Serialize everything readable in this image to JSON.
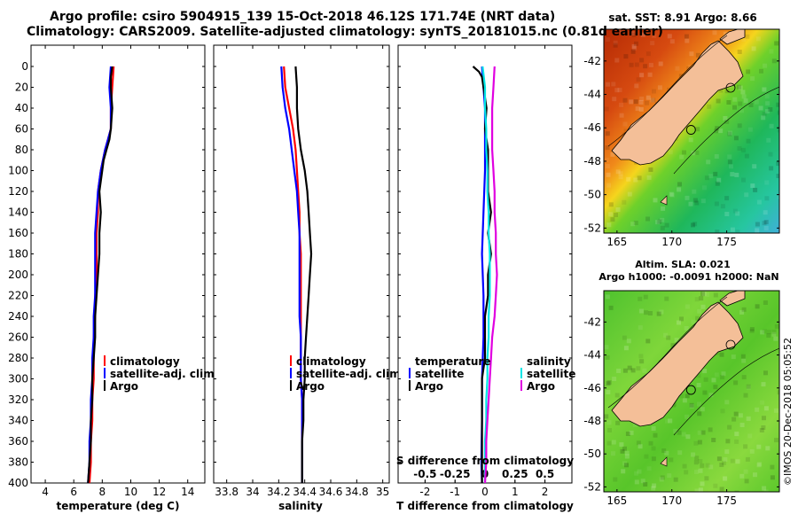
{
  "header": {
    "title_line1": "Argo profile: csiro 5904915_139 15-Oct-2018 46.12S 171.74E (NRT data)",
    "title_line2": "Climatology: CARS2009. Satellite-adjusted climatology: synTS_20181015.nc (0.81d earlier)"
  },
  "colors": {
    "climatology": "#ff0000",
    "satellite": "#0000ff",
    "argo": "#000000",
    "satellite_diff_s": "#00e5e5",
    "argo_diff_s": "#e000e0",
    "land": "#f4bf98"
  },
  "chart_data": [
    {
      "id": "temperature",
      "type": "line",
      "xlabel": "temperature (deg C)",
      "ylabel": "",
      "xlim": [
        3,
        15.2
      ],
      "ylim": [
        400,
        0
      ],
      "xticks": [
        "4",
        "6",
        "8",
        "10",
        "12",
        "14"
      ],
      "xtick_values": [
        4,
        6,
        8,
        10,
        12,
        14
      ],
      "yticks": [
        "0",
        "20",
        "40",
        "60",
        "80",
        "100",
        "120",
        "140",
        "160",
        "180",
        "200",
        "220",
        "240",
        "260",
        "280",
        "300",
        "320",
        "340",
        "360",
        "380",
        "400"
      ],
      "legend": [
        "climatology",
        "satellite-adj. clim.",
        "Argo"
      ],
      "legend_position": "lower-right",
      "series": [
        {
          "name": "climatology",
          "color": "#ff0000",
          "depth": [
            0,
            20,
            40,
            60,
            70,
            80,
            100,
            120,
            140,
            160,
            180,
            200,
            220,
            240,
            260,
            280,
            300,
            320,
            340,
            360,
            380,
            400
          ],
          "values": [
            8.8,
            8.7,
            8.6,
            8.6,
            8.4,
            8.2,
            7.9,
            7.7,
            7.7,
            7.6,
            7.6,
            7.6,
            7.5,
            7.5,
            7.4,
            7.4,
            7.4,
            7.3,
            7.3,
            7.2,
            7.2,
            7.1
          ]
        },
        {
          "name": "satellite-adj. clim.",
          "color": "#0000ff",
          "depth": [
            0,
            20,
            40,
            60,
            70,
            80,
            100,
            120,
            140,
            160,
            180,
            200,
            220,
            240,
            260,
            280,
            300,
            320,
            340,
            360,
            380,
            400
          ],
          "values": [
            8.6,
            8.5,
            8.6,
            8.6,
            8.4,
            8.2,
            7.9,
            7.7,
            7.6,
            7.5,
            7.5,
            7.5,
            7.5,
            7.4,
            7.4,
            7.3,
            7.3,
            7.2,
            7.2,
            7.1,
            7.1,
            7.0
          ]
        },
        {
          "name": "Argo",
          "color": "#000000",
          "depth": [
            0,
            10,
            20,
            40,
            60,
            70,
            80,
            90,
            100,
            120,
            140,
            160,
            180,
            200,
            220,
            240,
            260,
            280,
            300,
            320,
            340,
            360,
            380,
            400
          ],
          "values": [
            8.7,
            8.6,
            8.6,
            8.7,
            8.6,
            8.5,
            8.3,
            8.1,
            8.0,
            7.8,
            7.9,
            7.8,
            7.8,
            7.7,
            7.6,
            7.5,
            7.5,
            7.4,
            7.3,
            7.3,
            7.2,
            7.2,
            7.1,
            7.0
          ]
        }
      ]
    },
    {
      "id": "salinity",
      "type": "line",
      "xlabel": "salinity",
      "ylabel": "",
      "xlim": [
        33.7,
        35.05
      ],
      "ylim": [
        400,
        0
      ],
      "xticks": [
        "33.8",
        "34",
        "34.2",
        "34.4",
        "34.6",
        "34.8",
        "35"
      ],
      "xtick_values": [
        33.8,
        34,
        34.2,
        34.4,
        34.6,
        34.8,
        35
      ],
      "legend": [
        "climatology",
        "satellite-adj. clim.",
        "Argo"
      ],
      "legend_position": "lower-right",
      "series": [
        {
          "name": "climatology",
          "color": "#ff0000",
          "depth": [
            0,
            20,
            40,
            60,
            80,
            100,
            120,
            140,
            160,
            180,
            200,
            220,
            240,
            260,
            280,
            300,
            320,
            340,
            360,
            380,
            400
          ],
          "values": [
            34.24,
            34.25,
            34.28,
            34.31,
            34.33,
            34.34,
            34.35,
            34.36,
            34.36,
            34.37,
            34.37,
            34.37,
            34.37,
            34.37,
            34.37,
            34.37,
            34.38,
            34.38,
            34.38,
            34.38,
            34.38
          ]
        },
        {
          "name": "satellite-adj. clim.",
          "color": "#0000ff",
          "depth": [
            0,
            20,
            40,
            60,
            80,
            100,
            120,
            140,
            160,
            180,
            200,
            220,
            240,
            260,
            280,
            300,
            320,
            340,
            360,
            380,
            400
          ],
          "values": [
            34.22,
            34.23,
            34.25,
            34.28,
            34.3,
            34.32,
            34.34,
            34.35,
            34.36,
            34.36,
            34.36,
            34.36,
            34.36,
            34.37,
            34.37,
            34.37,
            34.38,
            34.38,
            34.38,
            34.38,
            34.38
          ]
        },
        {
          "name": "Argo",
          "color": "#000000",
          "depth": [
            0,
            20,
            40,
            60,
            80,
            100,
            120,
            140,
            160,
            180,
            200,
            220,
            240,
            260,
            280,
            300,
            320,
            340,
            360,
            380,
            400
          ],
          "values": [
            34.33,
            34.34,
            34.34,
            34.35,
            34.37,
            34.4,
            34.42,
            34.43,
            34.44,
            34.45,
            34.44,
            34.43,
            34.42,
            34.41,
            34.4,
            34.4,
            34.39,
            34.39,
            34.38,
            34.38,
            34.38
          ]
        }
      ]
    },
    {
      "id": "difference",
      "type": "line",
      "xlabel": "T difference from climatology",
      "xlabel_top": "S difference from climatology",
      "ylabel": "",
      "xlim": [
        -2.9,
        2.9
      ],
      "ylim": [
        400,
        0
      ],
      "xticks": [
        "-2",
        "-1",
        "0",
        "1",
        "2"
      ],
      "xtick_values": [
        -2,
        -1,
        0,
        1,
        2
      ],
      "s_xticks": [
        "-0.5",
        "-0.25",
        "0",
        "0.25",
        "0.5"
      ],
      "s_xtick_values": [
        -0.5,
        -0.25,
        0,
        0.25,
        0.5
      ],
      "legend_temperature_header": "temperature",
      "legend_salinity_header": "salinity",
      "legend": [
        "satellite",
        "Argo",
        "satellite",
        "Argo"
      ],
      "legend_position": "lower-center",
      "series": [
        {
          "name": "T satellite",
          "color": "#0000ff",
          "depth": [
            0,
            20,
            40,
            60,
            80,
            100,
            140,
            180,
            220,
            260,
            300,
            340,
            380,
            400
          ],
          "values": [
            -0.1,
            -0.05,
            0.0,
            0.0,
            0.0,
            0.0,
            -0.05,
            -0.1,
            -0.05,
            -0.05,
            -0.1,
            -0.1,
            -0.12,
            -0.1
          ]
        },
        {
          "name": "T Argo",
          "color": "#000000",
          "depth": [
            0,
            5,
            10,
            20,
            40,
            60,
            80,
            100,
            120,
            140,
            160,
            180,
            200,
            220,
            240,
            260,
            280,
            300,
            320,
            340,
            360,
            380,
            400
          ],
          "values": [
            -0.4,
            -0.2,
            -0.1,
            -0.05,
            0.05,
            0.0,
            0.1,
            0.1,
            0.1,
            0.2,
            0.1,
            0.2,
            0.1,
            0.1,
            0.0,
            0.0,
            0.0,
            -0.1,
            -0.1,
            -0.1,
            -0.1,
            -0.1,
            -0.1
          ]
        },
        {
          "name": "S satellite",
          "color": "#00e5e5",
          "depth": [
            0,
            20,
            40,
            60,
            80,
            100,
            120,
            140,
            160,
            180,
            200,
            220,
            240,
            260,
            280,
            300,
            320,
            340,
            360,
            380,
            400
          ],
          "values": [
            -0.02,
            0.0,
            0.0,
            0.01,
            0.01,
            0.02,
            0.02,
            0.03,
            0.03,
            0.04,
            0.04,
            0.04,
            0.03,
            0.03,
            0.02,
            0.02,
            0.01,
            0.01,
            0.0,
            0.0,
            0.0
          ]
        },
        {
          "name": "S Argo",
          "color": "#e000e0",
          "depth": [
            0,
            20,
            40,
            60,
            80,
            100,
            120,
            140,
            160,
            180,
            200,
            220,
            240,
            260,
            280,
            300,
            320,
            340,
            360,
            380,
            400
          ],
          "values": [
            0.08,
            0.07,
            0.06,
            0.06,
            0.06,
            0.07,
            0.08,
            0.08,
            0.09,
            0.09,
            0.1,
            0.09,
            0.08,
            0.06,
            0.05,
            0.04,
            0.03,
            0.02,
            0.01,
            0.01,
            0.0
          ]
        }
      ]
    }
  ],
  "maps": {
    "sst": {
      "title": "sat. SST: 8.91 Argo: 8.66",
      "yticks": [
        "-42",
        "-44",
        "-46",
        "-48",
        "-50",
        "-52"
      ],
      "ytick_values": [
        -42,
        -44,
        -46,
        -48,
        -50,
        -52
      ],
      "xticks": [
        "165",
        "170",
        "175"
      ],
      "xtick_values": [
        165,
        170,
        175
      ],
      "lon_range": [
        163.8,
        179.8
      ],
      "lat_range": [
        -52.3,
        -40.1
      ],
      "argo_lon": 171.74,
      "argo_lat": -46.12
    },
    "sla": {
      "title_line1": "Altim. SLA: 0.021",
      "title_line2": "Argo h1000: -0.0091 h2000: NaN",
      "yticks": [
        "-42",
        "-44",
        "-46",
        "-48",
        "-50",
        "-52"
      ],
      "ytick_values": [
        -42,
        -44,
        -46,
        -48,
        -50,
        -52
      ],
      "xticks": [
        "165",
        "170",
        "175"
      ],
      "xtick_values": [
        165,
        170,
        175
      ],
      "lon_range": [
        163.8,
        179.8
      ],
      "lat_range": [
        -52.3,
        -40.1
      ],
      "argo_lon": 171.74,
      "argo_lat": -46.12
    }
  },
  "watermark": "©IMOS 20-Dec-2018 05:05:52"
}
